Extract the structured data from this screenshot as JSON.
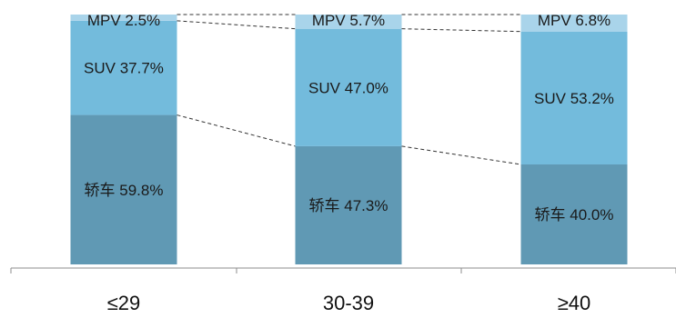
{
  "chart_data": {
    "type": "bar",
    "stacked": true,
    "percent_stacked": true,
    "categories": [
      "≤29",
      "30-39",
      "≥40"
    ],
    "series": [
      {
        "name": "轿车",
        "values": [
          59.8,
          47.3,
          40.0
        ],
        "color": "#6099b4",
        "labels": [
          "轿车 59.8%",
          "轿车 47.3%",
          "轿车 40.0%"
        ]
      },
      {
        "name": "SUV",
        "values": [
          37.7,
          47.0,
          53.2
        ],
        "color": "#73bbdc",
        "labels": [
          "SUV 37.7%",
          "SUV 47.0%",
          "SUV 53.2%"
        ]
      },
      {
        "name": "MPV",
        "values": [
          2.5,
          5.7,
          6.8
        ],
        "color": "#a9d4ea",
        "labels": [
          "MPV 2.5%",
          "MPV 5.7%",
          "MPV 6.8%"
        ]
      }
    ],
    "ylim": [
      0,
      100
    ],
    "connector_lines": "dashed",
    "grid": false,
    "legend": "none"
  }
}
